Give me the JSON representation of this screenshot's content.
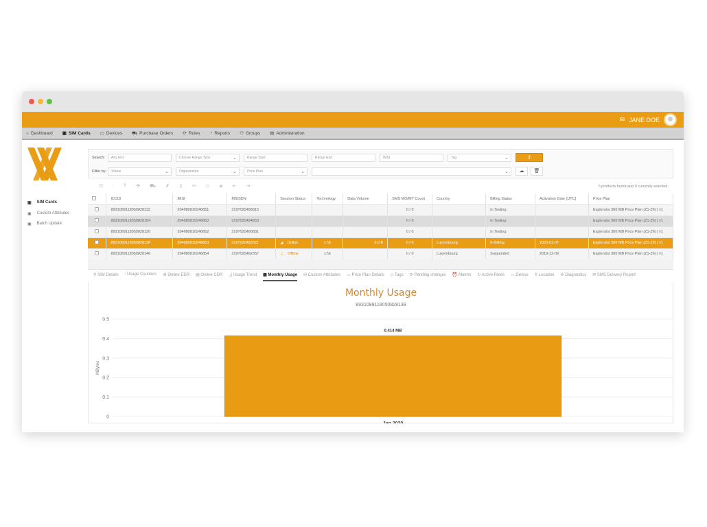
{
  "header": {
    "user_name": "JANE DOE"
  },
  "nav": [
    {
      "label": "Dashboard",
      "icon": "dashboard-icon",
      "g": "⌂"
    },
    {
      "label": "SIM Cards",
      "icon": "sim-card-icon",
      "g": "▣",
      "active": true
    },
    {
      "label": "Devices",
      "icon": "laptop-icon",
      "g": "▭"
    },
    {
      "label": "Purchase Orders",
      "icon": "cart-icon",
      "g": "⛟"
    },
    {
      "label": "Rules",
      "icon": "rules-icon",
      "g": "⟳"
    },
    {
      "label": "Reports",
      "icon": "pie-chart-icon",
      "g": "◔"
    },
    {
      "label": "Groups",
      "icon": "groups-icon",
      "g": "⚇"
    },
    {
      "label": "Administration",
      "icon": "admin-icon",
      "g": "▤"
    }
  ],
  "sidebar": [
    {
      "label": "SIM Cards",
      "icon": "sim-card-icon",
      "active": true
    },
    {
      "label": "Custom Attributes",
      "icon": "attributes-icon"
    },
    {
      "label": "Batch Update",
      "icon": "batch-update-icon"
    }
  ],
  "filters": {
    "search_label": "Search:",
    "filter_label": "Filter by:",
    "any_text": "Any text",
    "range_type": "Choose Range Type",
    "range_start": "Range Start",
    "range_end": "Range End",
    "imsi": "IMSI",
    "tag": "Tag",
    "status": "Status",
    "organization": "Organization",
    "price_plan": "Price Plan"
  },
  "found_text": "5 products found and 0 currently selected.",
  "table": {
    "columns": [
      "ICCID",
      "IMSI",
      "MSISDN",
      "Session Status",
      "Technology",
      "Data Volume",
      "SMS MO/MT Count",
      "Country",
      "Billing Status",
      "Activation Date (UTC)",
      "Price Plan"
    ],
    "rows": [
      [
        "8931089118050828112",
        "204080810246851",
        "3197020496815",
        "",
        "",
        "",
        "0 / 0",
        "",
        "In Testing",
        "",
        "Esplendor 300 MB Price Plan (Z1-Z6) | v1"
      ],
      [
        "8931089118050828104",
        "204080810246850",
        "3197020494553",
        "",
        "",
        "",
        "0 / 0",
        "",
        "In Testing",
        "",
        "Esplendor 300 MB Price Plan (Z1-Z6) | v1"
      ],
      [
        "8931089118050828120",
        "204080810246852",
        "3197020490831",
        "",
        "",
        "",
        "0 / 0",
        "",
        "In Testing",
        "",
        "Esplendor 300 MB Price Plan (Z1-Z6) | v1"
      ],
      [
        "8931089118050828138",
        "204080810246853",
        "3197020492321",
        "Online",
        "LTE",
        "0.0 B",
        "0 / 0",
        "Luxembourg",
        "In Billing",
        "2020-01-07",
        "Esplendor 300 MB Price Plan (Z1-Z6) | v1"
      ],
      [
        "8931089118050828146",
        "204080810246854",
        "3197020492357",
        "Offline",
        "LTE",
        "",
        "0 / 0",
        "Luxembourg",
        "Suspended",
        "2019-12-09",
        "Esplendor 300 MB Price Plan (Z1-Z6) | v1"
      ]
    ],
    "selected_row": 3
  },
  "tabs": [
    {
      "label": "SIM Details",
      "g": "⚲"
    },
    {
      "label": "Usage Counters",
      "g": "⫶"
    },
    {
      "label": "Online EDR",
      "g": "⚙"
    },
    {
      "label": "Online CDR",
      "g": "▤"
    },
    {
      "label": "Usage Trend",
      "g": "◿"
    },
    {
      "label": "Monthly Usage",
      "g": "▦",
      "active": true
    },
    {
      "label": "Custom Attributes",
      "g": "⛁"
    },
    {
      "label": "Price Plan Details",
      "g": "▭"
    },
    {
      "label": "Tags",
      "g": "◇"
    },
    {
      "label": "Pending changes",
      "g": "⟳"
    },
    {
      "label": "Alarms",
      "g": "⏰"
    },
    {
      "label": "Active Rules",
      "g": "↻"
    },
    {
      "label": "Device",
      "g": "▭"
    },
    {
      "label": "Location",
      "g": "⚲"
    },
    {
      "label": "Diagnostics",
      "g": "✣"
    },
    {
      "label": "SMS Delivery Report",
      "g": "✉"
    }
  ],
  "colors": {
    "accent": "#e99d14",
    "bar": "#e89c14",
    "title": "#d08a35"
  },
  "chart_data": {
    "type": "bar",
    "title": "Monthly Usage",
    "subtitle": "8931089118050828138",
    "categories": [
      "Jan 2020"
    ],
    "values": [
      0.414
    ],
    "data_labels": [
      "0.414 MB"
    ],
    "ylabel": "MBytes",
    "ylim": [
      0,
      0.5
    ],
    "yticks": [
      "0",
      "0.1",
      "0.2",
      "0.3",
      "0.4",
      "0.5"
    ],
    "grid": true
  }
}
